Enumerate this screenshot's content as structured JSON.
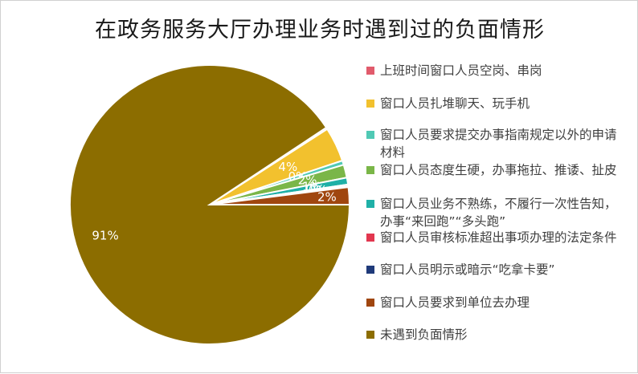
{
  "chart_data": {
    "type": "pie",
    "title": "在政务服务大厅办理业务时遇到过的负面情形",
    "legend_position": "right",
    "categories": [
      "上班时间窗口人员空岗、串岗",
      "窗口人员扎堆聊天、玩手机",
      "窗口人员要求提交办事指南规定以外的申请材料",
      "窗口人员态度生硬，办事拖拉、推诿、扯皮",
      "窗口人员业务不熟练，不履行一次性告知，办事“来回跑”“多头跑”",
      "窗口人员审核标准超出事项办理的法定条件",
      "窗口人员明示或暗示“吃拿卡要”",
      "窗口人员要求到单位去办理",
      "未遇到负面情形"
    ],
    "values": [
      0.2,
      4.0,
      0.5,
      1.5,
      0.8,
      0.2,
      0.1,
      2.0,
      90.7
    ],
    "data_labels": [
      "0%",
      "4%",
      "0%",
      "2%",
      "1%",
      "0%",
      "0%",
      "2%",
      "91%"
    ],
    "colors": [
      "#e15b6c",
      "#f2c12e",
      "#50c9b4",
      "#7ab648",
      "#1fb0a7",
      "#e2374f",
      "#1f3a7a",
      "#a0460f",
      "#8c6d00"
    ]
  }
}
